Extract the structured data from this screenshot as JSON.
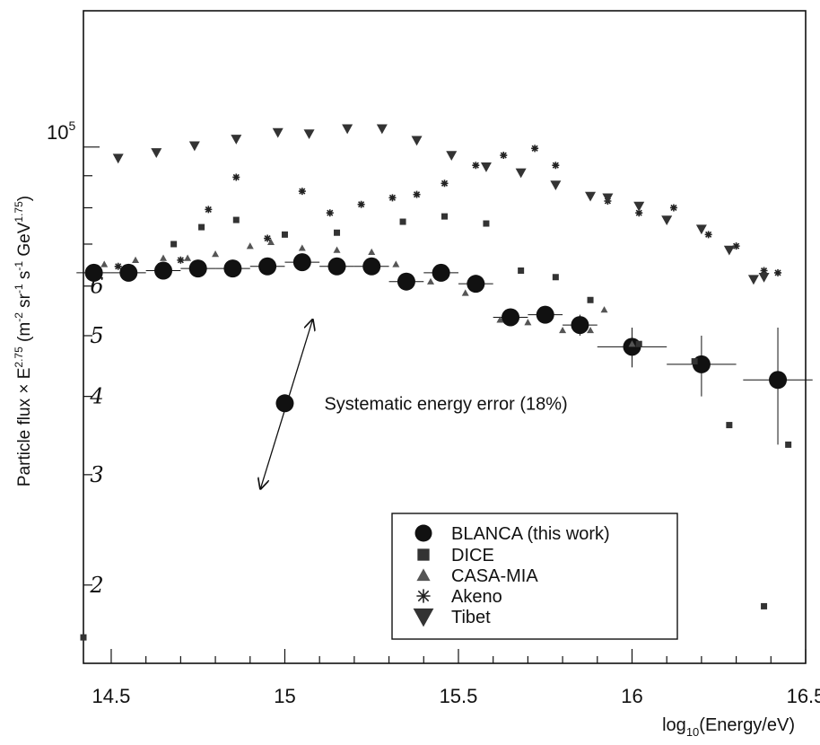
{
  "chart_data": {
    "type": "scatter",
    "title": "",
    "xlabel": "log10(Energy/eV)",
    "ylabel": "Particle flux × E^2.75 (m^-2 sr^-1 s^-1 GeV^1.75)",
    "xlim": [
      14.42,
      16.5
    ],
    "ylim": [
      15000,
      165000
    ],
    "y_scale": "log",
    "x_ticks": [
      14.5,
      15,
      15.5,
      16,
      16.5
    ],
    "x_tick_labels": [
      "14.5",
      "15",
      "15.5",
      "16",
      "16.5"
    ],
    "y_tick_base": "10",
    "y_tick_exp": "5",
    "ylabel_parts": {
      "main": "Particle flux × E",
      "exp1": "2.75",
      "unit_pre": " (m",
      "exp2": "-2",
      "sr": " sr",
      "exp3": "-1",
      "s": " s",
      "exp4": "-1",
      "gev": " GeV",
      "exp5": "1.75",
      "close": ")"
    },
    "xlabel_parts": {
      "pre": "log",
      "sub": "10",
      "post": "(Energy/eV)"
    },
    "handwritten_ticks": [
      {
        "value": 60000,
        "label": "6"
      },
      {
        "value": 50000,
        "label": "5"
      },
      {
        "value": 40000,
        "label": "4"
      },
      {
        "value": 30000,
        "label": "3"
      },
      {
        "value": 20000,
        "label": "2"
      }
    ],
    "annotation": {
      "text": "Systematic energy error (18%)",
      "x": 15.0,
      "y": 39000,
      "arrow_from": [
        14.93,
        28500
      ],
      "arrow_to": [
        15.08,
        53000
      ]
    },
    "legend_position": "bottom-right",
    "series": [
      {
        "name": "BLANCA (this work)",
        "marker": "circle",
        "points": [
          [
            14.45,
            63000
          ],
          [
            14.55,
            63000
          ],
          [
            14.65,
            63500
          ],
          [
            14.75,
            64000
          ],
          [
            14.85,
            64000
          ],
          [
            14.95,
            64500
          ],
          [
            15.05,
            65500
          ],
          [
            15.15,
            64500
          ],
          [
            15.25,
            64500
          ],
          [
            15.35,
            61000
          ],
          [
            15.45,
            63000
          ],
          [
            15.55,
            60500
          ],
          [
            15.65,
            53500
          ],
          [
            15.75,
            54000
          ],
          [
            15.85,
            52000
          ],
          [
            16.0,
            48000
          ],
          [
            16.2,
            45000
          ],
          [
            16.42,
            42500
          ]
        ],
        "xerr": [
          0.05,
          0.05,
          0.05,
          0.05,
          0.05,
          0.05,
          0.05,
          0.05,
          0.05,
          0.05,
          0.05,
          0.05,
          0.05,
          0.05,
          0.05,
          0.1,
          0.1,
          0.1
        ],
        "yerr": [
          0,
          0,
          0,
          0,
          0,
          0,
          0,
          0,
          0,
          0,
          0,
          0,
          0,
          0,
          2000,
          3500,
          5000,
          9000
        ]
      },
      {
        "name": "DICE",
        "marker": "square",
        "points": [
          [
            14.42,
            16500
          ],
          [
            14.68,
            70000
          ],
          [
            14.76,
            74500
          ],
          [
            14.86,
            76500
          ],
          [
            15.0,
            72500
          ],
          [
            15.15,
            73000
          ],
          [
            15.34,
            76000
          ],
          [
            15.46,
            77500
          ],
          [
            15.58,
            75500
          ],
          [
            15.68,
            63500
          ],
          [
            15.78,
            62000
          ],
          [
            15.88,
            57000
          ],
          [
            16.02,
            48500
          ],
          [
            16.18,
            45500
          ],
          [
            16.28,
            36000
          ],
          [
            16.38,
            18500
          ],
          [
            16.45,
            33500
          ]
        ]
      },
      {
        "name": "CASA-MIA",
        "marker": "triangle",
        "points": [
          [
            14.48,
            65000
          ],
          [
            14.57,
            66000
          ],
          [
            14.65,
            66500
          ],
          [
            14.72,
            66500
          ],
          [
            14.8,
            67500
          ],
          [
            14.9,
            69500
          ],
          [
            14.96,
            70500
          ],
          [
            15.05,
            69000
          ],
          [
            15.15,
            68500
          ],
          [
            15.25,
            68000
          ],
          [
            15.32,
            65000
          ],
          [
            15.42,
            61000
          ],
          [
            15.52,
            58500
          ],
          [
            15.62,
            53000
          ],
          [
            15.7,
            52500
          ],
          [
            15.8,
            51000
          ],
          [
            15.88,
            51000
          ],
          [
            15.92,
            55000
          ],
          [
            16.0,
            48500
          ]
        ]
      },
      {
        "name": "Akeno",
        "marker": "star",
        "points": [
          [
            14.52,
            64500
          ],
          [
            14.7,
            66000
          ],
          [
            14.78,
            79500
          ],
          [
            14.86,
            89500
          ],
          [
            14.95,
            71500
          ],
          [
            15.05,
            85000
          ],
          [
            15.13,
            78500
          ],
          [
            15.22,
            81000
          ],
          [
            15.31,
            83000
          ],
          [
            15.38,
            84000
          ],
          [
            15.46,
            87500
          ],
          [
            15.55,
            93500
          ],
          [
            15.63,
            97000
          ],
          [
            15.72,
            99500
          ],
          [
            15.78,
            93500
          ],
          [
            15.93,
            82000
          ],
          [
            16.02,
            78500
          ],
          [
            16.12,
            80000
          ],
          [
            16.22,
            72500
          ],
          [
            16.3,
            69500
          ],
          [
            16.38,
            63500
          ],
          [
            16.42,
            63000
          ]
        ]
      },
      {
        "name": "Tibet",
        "marker": "triangle-down",
        "points": [
          [
            14.52,
            96000
          ],
          [
            14.63,
            98000
          ],
          [
            14.74,
            100500
          ],
          [
            14.86,
            103000
          ],
          [
            14.98,
            105500
          ],
          [
            15.07,
            105000
          ],
          [
            15.18,
            107000
          ],
          [
            15.28,
            107000
          ],
          [
            15.38,
            102500
          ],
          [
            15.48,
            97000
          ],
          [
            15.58,
            93000
          ],
          [
            15.68,
            91000
          ],
          [
            15.78,
            87000
          ],
          [
            15.88,
            83500
          ],
          [
            15.93,
            83000
          ],
          [
            16.02,
            80500
          ],
          [
            16.1,
            76500
          ],
          [
            16.2,
            74000
          ],
          [
            16.28,
            68500
          ],
          [
            16.35,
            61500
          ],
          [
            16.38,
            62000
          ]
        ]
      }
    ]
  }
}
